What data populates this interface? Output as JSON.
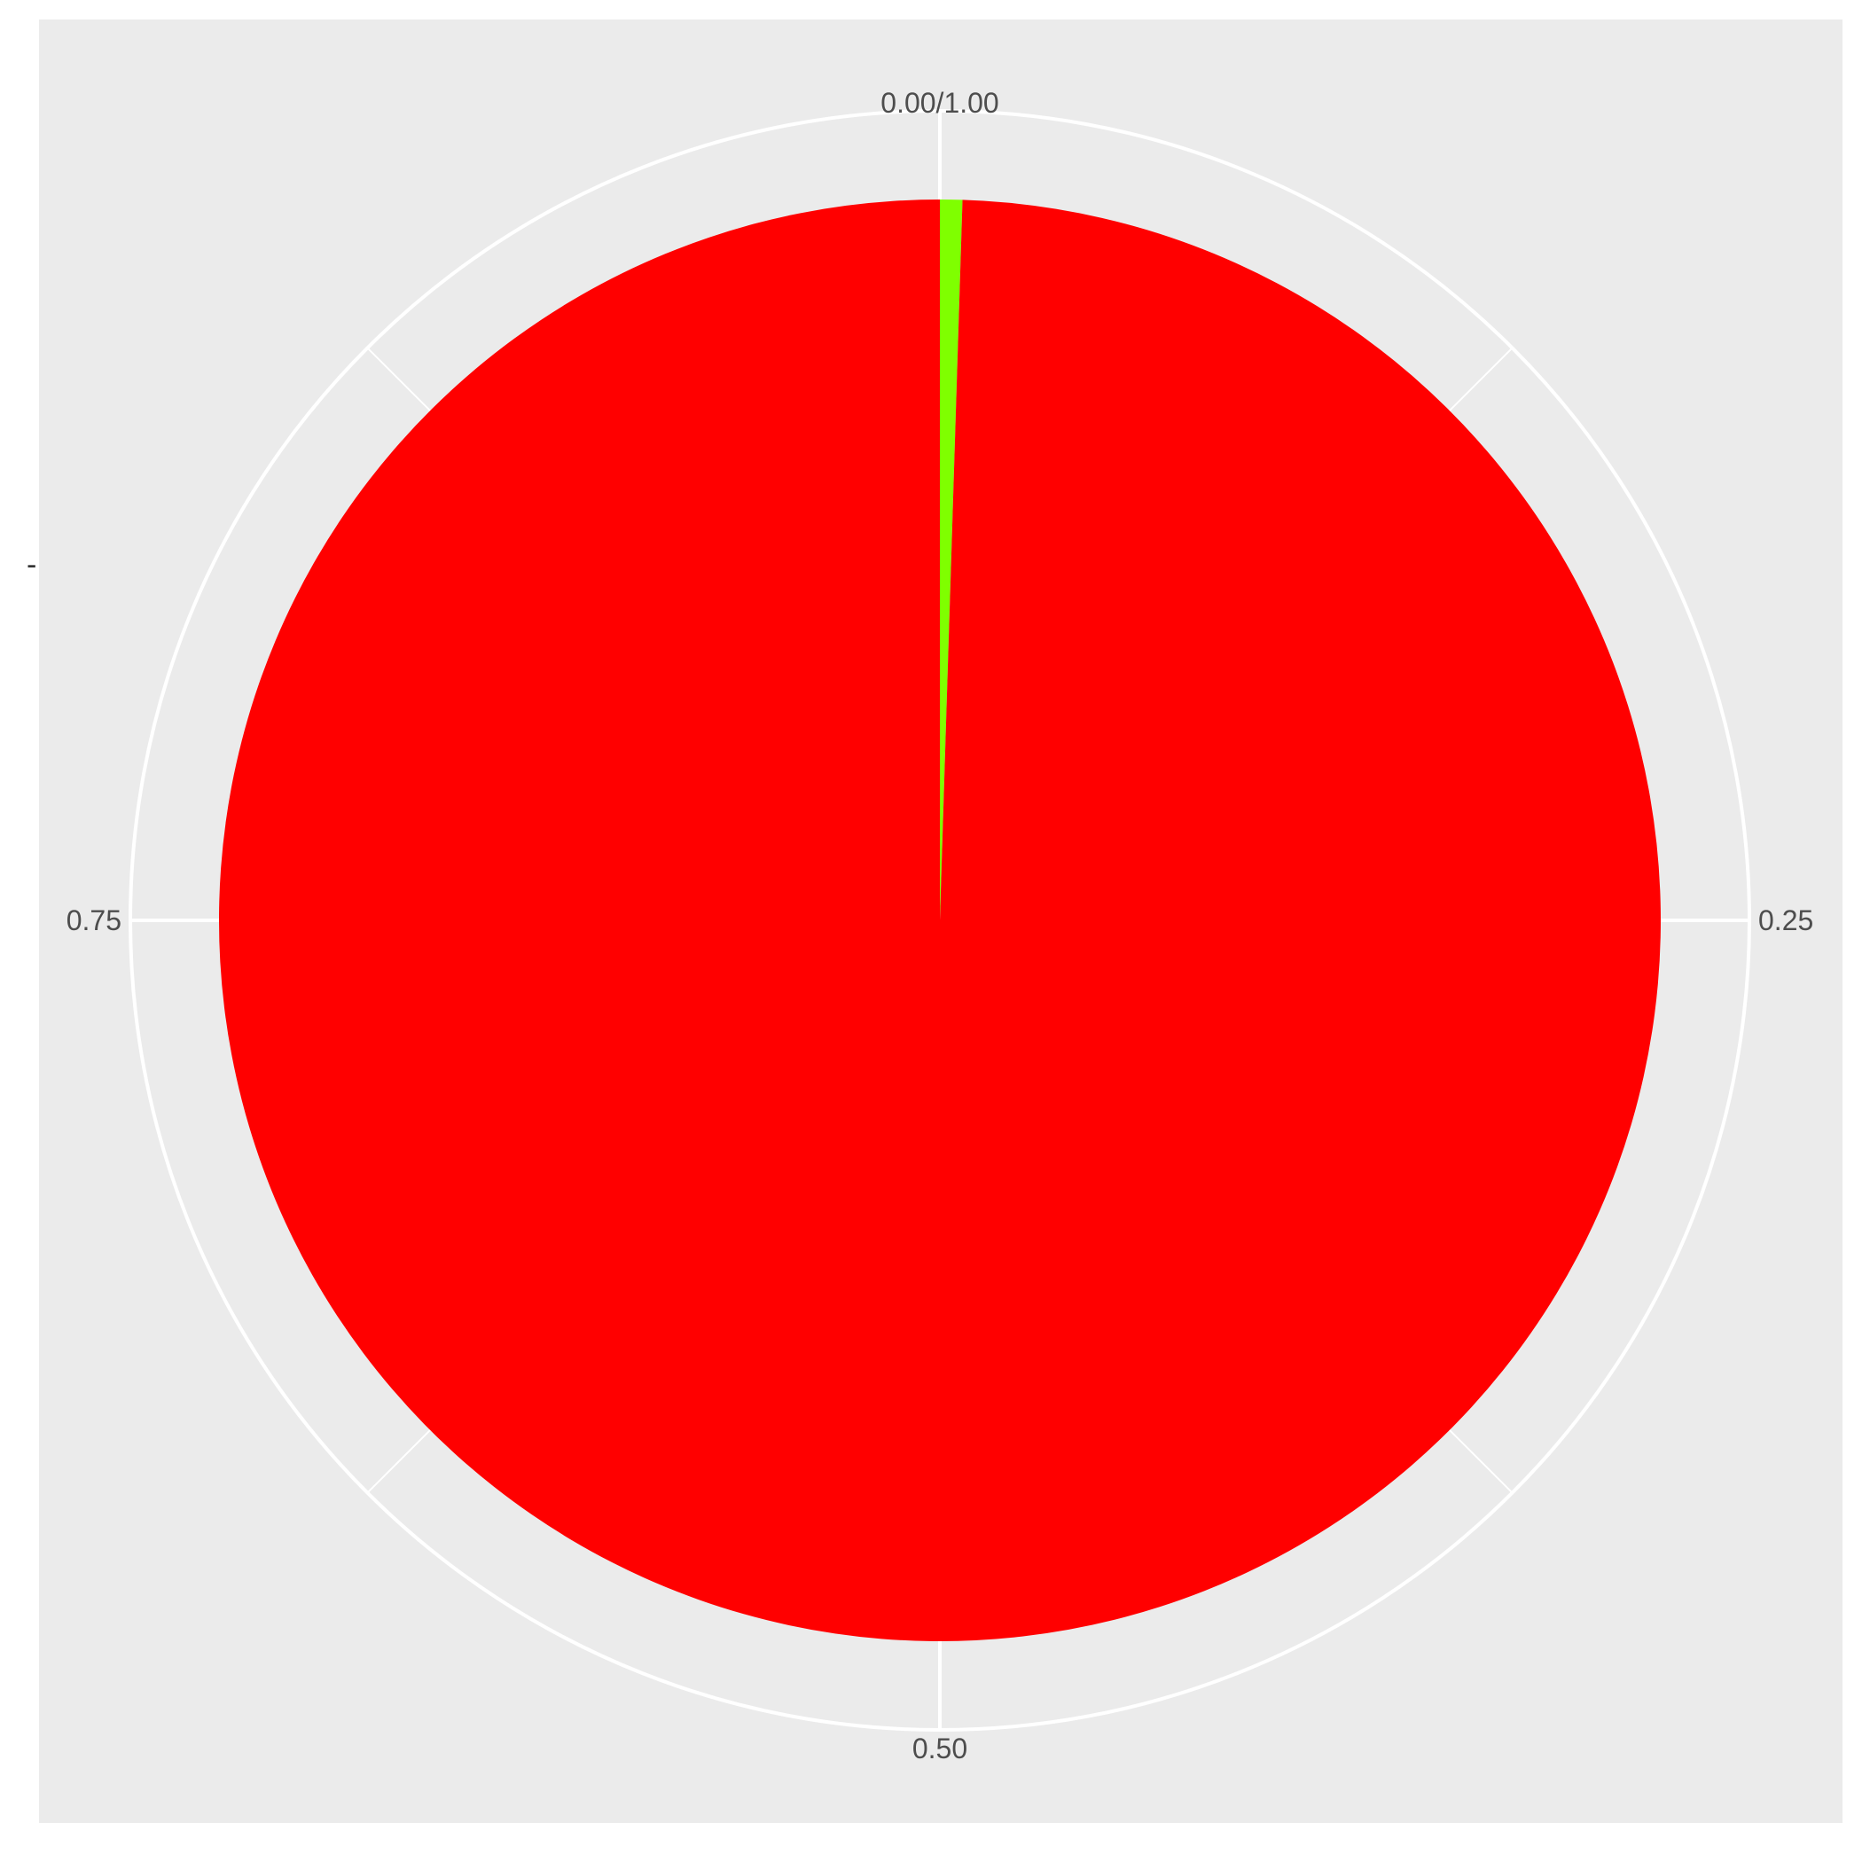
{
  "chart_data": {
    "type": "pie",
    "coord": "polar",
    "title": "",
    "xlabel": "",
    "ylabel": "",
    "y_tick_label": "-",
    "theta_ticks": [
      {
        "value": 0.0,
        "label": "0.00/1.00"
      },
      {
        "value": 0.25,
        "label": "0.25"
      },
      {
        "value": 0.5,
        "label": "0.50"
      },
      {
        "value": 0.75,
        "label": "0.75"
      }
    ],
    "theta_minor_ticks": [
      0.125,
      0.375,
      0.625,
      0.875
    ],
    "slices": [
      {
        "value": 0.005,
        "color": "#7FFF00"
      },
      {
        "value": 0.995,
        "color": "#FF0000"
      }
    ],
    "legend": "none",
    "grid": true,
    "colors": {
      "panel_background": "#EBEBEB",
      "gridline": "#FFFFFF",
      "page_background": "#FFFFFF"
    }
  }
}
